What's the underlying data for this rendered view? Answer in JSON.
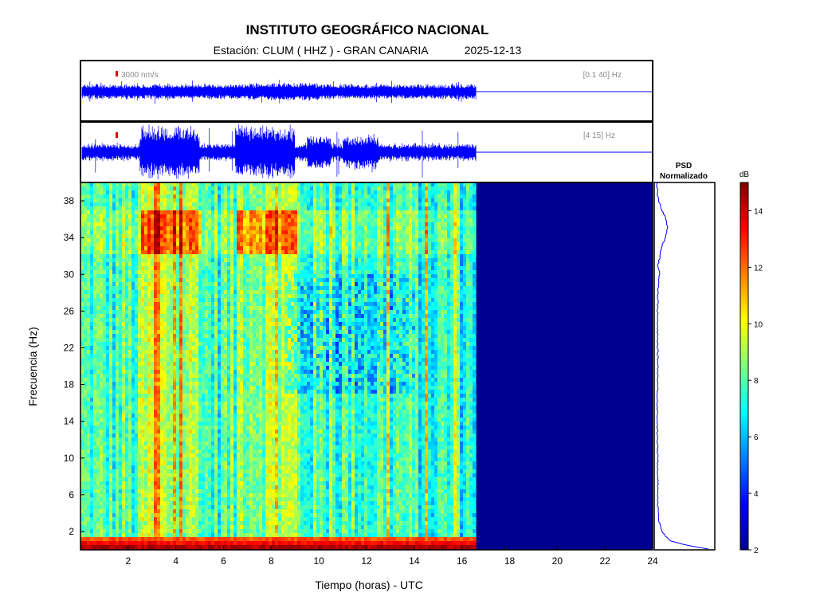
{
  "header": {
    "title": "INSTITUTO GEOGRÁFICO NACIONAL",
    "station_line": "Estación:  CLUM ( HHZ ) - GRAN CANARIA",
    "date": "2025-12-13"
  },
  "trace1": {
    "scale_label": "3000 nm/s",
    "band_label": "[0.1 40] Hz"
  },
  "trace2": {
    "band_label": "[4 15] Hz"
  },
  "psd_panel": {
    "title_line1": "PSD",
    "title_line2": "Normalizado"
  },
  "colorbar": {
    "unit": "dB",
    "ticks": [
      2,
      4,
      6,
      8,
      10,
      12,
      14
    ],
    "range": [
      2,
      15
    ]
  },
  "colors": {
    "trace": "#0000ff",
    "scale_bar": "#e00000",
    "nodata": "#00008f",
    "frame": "#000000"
  },
  "chart_data": {
    "type": "heatmap",
    "title": "INSTITUTO GEOGRÁFICO NACIONAL",
    "xlabel": "Tiempo (horas) - UTC",
    "ylabel": "Frecuencia  (Hz)",
    "xlim": [
      0,
      24
    ],
    "ylim": [
      0,
      40
    ],
    "x_ticks": [
      2,
      4,
      6,
      8,
      10,
      12,
      14,
      16,
      18,
      20,
      22,
      24
    ],
    "y_ticks": [
      2,
      6,
      10,
      14,
      18,
      22,
      26,
      30,
      34,
      38
    ],
    "data_end_hour": 16.6,
    "color_scale": "jet",
    "zlim_db": [
      2,
      15
    ],
    "high_activity_hours": [
      [
        2.5,
        5
      ],
      [
        6.5,
        9
      ]
    ],
    "bright_band_hz": [
      32,
      37
    ],
    "psd_normalized_profile": {
      "freq_hz": [
        0,
        0.5,
        1,
        2,
        3,
        5,
        8,
        12,
        16,
        20,
        24,
        28,
        30,
        31,
        33,
        34,
        35,
        36,
        37,
        38,
        39,
        40
      ],
      "value": [
        1.0,
        0.55,
        0.25,
        0.12,
        0.07,
        0.05,
        0.05,
        0.04,
        0.04,
        0.05,
        0.04,
        0.05,
        0.08,
        0.05,
        0.12,
        0.18,
        0.22,
        0.19,
        0.12,
        0.06,
        0.04,
        0.03
      ]
    }
  }
}
